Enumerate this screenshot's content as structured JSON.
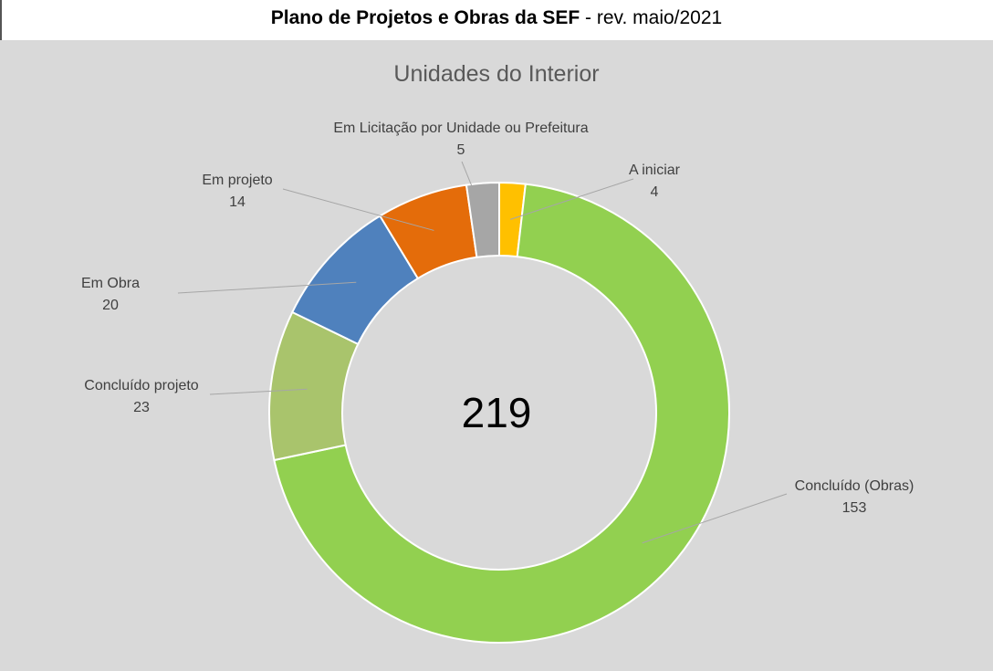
{
  "header": {
    "title_bold": "Plano de Projetos e Obras da SEF",
    "title_rest": " - rev. maio/2021"
  },
  "chart_data": {
    "type": "pie",
    "variant": "doughnut",
    "title": "Unidades do Interior",
    "center_label": "219",
    "slices": [
      {
        "label": "A iniciar",
        "value": 4,
        "color": "#ffc000"
      },
      {
        "label": "Concluído (Obras)",
        "value": 153,
        "color": "#92d050"
      },
      {
        "label": "Concluído projeto",
        "value": 23,
        "color": "#a9c46c"
      },
      {
        "label": "Em Obra",
        "value": 20,
        "color": "#4f81bd"
      },
      {
        "label": "Em projeto",
        "value": 14,
        "color": "#e46c0a"
      },
      {
        "label": "Em Licitação por Unidade ou Prefeitura",
        "value": 5,
        "color": "#a6a6a6"
      }
    ]
  }
}
